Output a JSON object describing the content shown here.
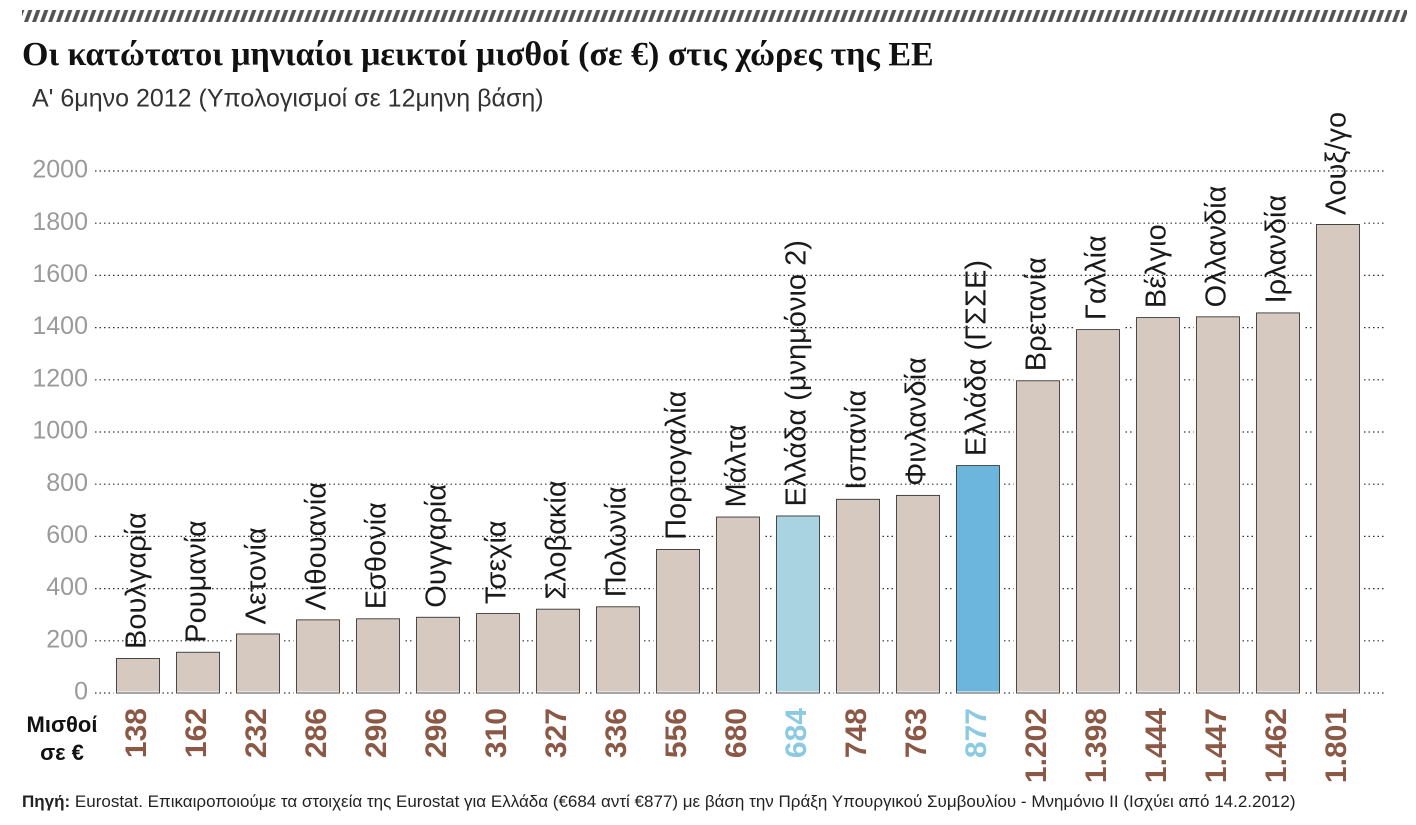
{
  "chart_data": {
    "type": "bar",
    "title": "Οι κατώτατοι μηνιαίοι μεικτοί μισθοί (σε €) στις χώρες της ΕΕ",
    "subtitle": "Α' 6μηνο 2012 (Υπολογισμοί σε 12μηνη βάση)",
    "categories": [
      "Βουλγαρία",
      "Ρουμανία",
      "Λετονία",
      "Λιθουανία",
      "Εσθονία",
      "Ουγγαρία",
      "Τσεχία",
      "Σλοβακία",
      "Πολωνία",
      "Πορτογαλία",
      "Μάλτα",
      "Ελλάδα (μνημόνιο 2)",
      "Ισπανία",
      "Φινλανδία",
      "Ελλάδα (ΓΣΣΕ)",
      "Βρετανία",
      "Γαλλία",
      "Βέλγιο",
      "Ολλανδία",
      "Ιρλανδία",
      "Λουξ/γο"
    ],
    "values": [
      138,
      162,
      232,
      286,
      290,
      296,
      310,
      327,
      336,
      556,
      680,
      684,
      748,
      763,
      877,
      1202,
      1398,
      1444,
      1447,
      1462,
      1801
    ],
    "value_labels": [
      "138",
      "162",
      "232",
      "286",
      "290",
      "296",
      "310",
      "327",
      "336",
      "556",
      "680",
      "684",
      "748",
      "763",
      "877",
      "1.202",
      "1.398",
      "1.444",
      "1.447",
      "1.462",
      "1.801"
    ],
    "colors": [
      "#d6c9c0",
      "#d6c9c0",
      "#d6c9c0",
      "#d6c9c0",
      "#d6c9c0",
      "#d6c9c0",
      "#d6c9c0",
      "#d6c9c0",
      "#d6c9c0",
      "#d6c9c0",
      "#d6c9c0",
      "#a9d3e1",
      "#d6c9c0",
      "#d6c9c0",
      "#6cb6de",
      "#d6c9c0",
      "#d6c9c0",
      "#d6c9c0",
      "#d6c9c0",
      "#d6c9c0",
      "#d6c9c0"
    ],
    "label_colors": [
      "#8b5846",
      "#8b5846",
      "#8b5846",
      "#8b5846",
      "#8b5846",
      "#8b5846",
      "#8b5846",
      "#8b5846",
      "#8b5846",
      "#8b5846",
      "#8b5846",
      "#8ccae2",
      "#8b5846",
      "#8b5846",
      "#8ccae2",
      "#8b5846",
      "#8b5846",
      "#8b5846",
      "#8b5846",
      "#8b5846",
      "#8b5846"
    ],
    "value_row_label": [
      "Μισθοί",
      "σε €"
    ],
    "ylim": [
      0,
      2000
    ],
    "yticks": [
      0,
      200,
      400,
      600,
      800,
      1000,
      1200,
      1400,
      1600,
      1800,
      2000
    ],
    "grid": true,
    "source": {
      "label": "Πηγή:",
      "text": "Eurostat. Επικαιροποιούμε τα στοιχεία της Eurostat για Ελλάδα (€684 αντί €877) με βάση την Πράξη Υπουργικού Συμβουλίου - Μνημόνιο ΙΙ (Ισχύει από 14.2.2012)"
    }
  }
}
